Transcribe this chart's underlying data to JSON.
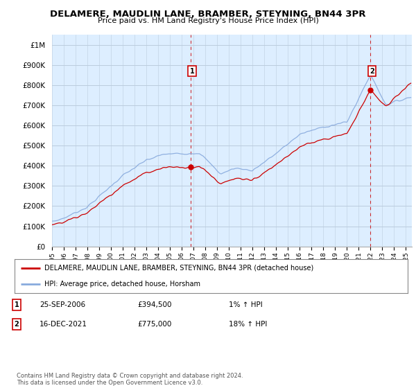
{
  "title": "DELAMERE, MAUDLIN LANE, BRAMBER, STEYNING, BN44 3PR",
  "subtitle": "Price paid vs. HM Land Registry's House Price Index (HPI)",
  "ylim": [
    0,
    1050000
  ],
  "yticks": [
    0,
    100000,
    200000,
    300000,
    400000,
    500000,
    600000,
    700000,
    800000,
    900000,
    1000000
  ],
  "ytick_labels": [
    "£0",
    "£100K",
    "£200K",
    "£300K",
    "£400K",
    "£500K",
    "£600K",
    "£700K",
    "£800K",
    "£900K",
    "£1M"
  ],
  "sale1_date": "25-SEP-2006",
  "sale1_price": 394500,
  "sale1_label": "1% ↑ HPI",
  "sale1_x": 2006.73,
  "sale2_date": "16-DEC-2021",
  "sale2_price": 775000,
  "sale2_label": "18% ↑ HPI",
  "sale2_x": 2021.96,
  "property_line_color": "#cc0000",
  "hpi_line_color": "#88aadd",
  "vline_color": "#cc0000",
  "plot_bg_color": "#ddeeff",
  "background_color": "#ffffff",
  "grid_color": "#bbccdd",
  "legend_label_property": "DELAMERE, MAUDLIN LANE, BRAMBER, STEYNING, BN44 3PR (detached house)",
  "legend_label_hpi": "HPI: Average price, detached house, Horsham",
  "footnote": "Contains HM Land Registry data © Crown copyright and database right 2024.\nThis data is licensed under the Open Government Licence v3.0.",
  "xmin": 1995,
  "xmax": 2025.5
}
